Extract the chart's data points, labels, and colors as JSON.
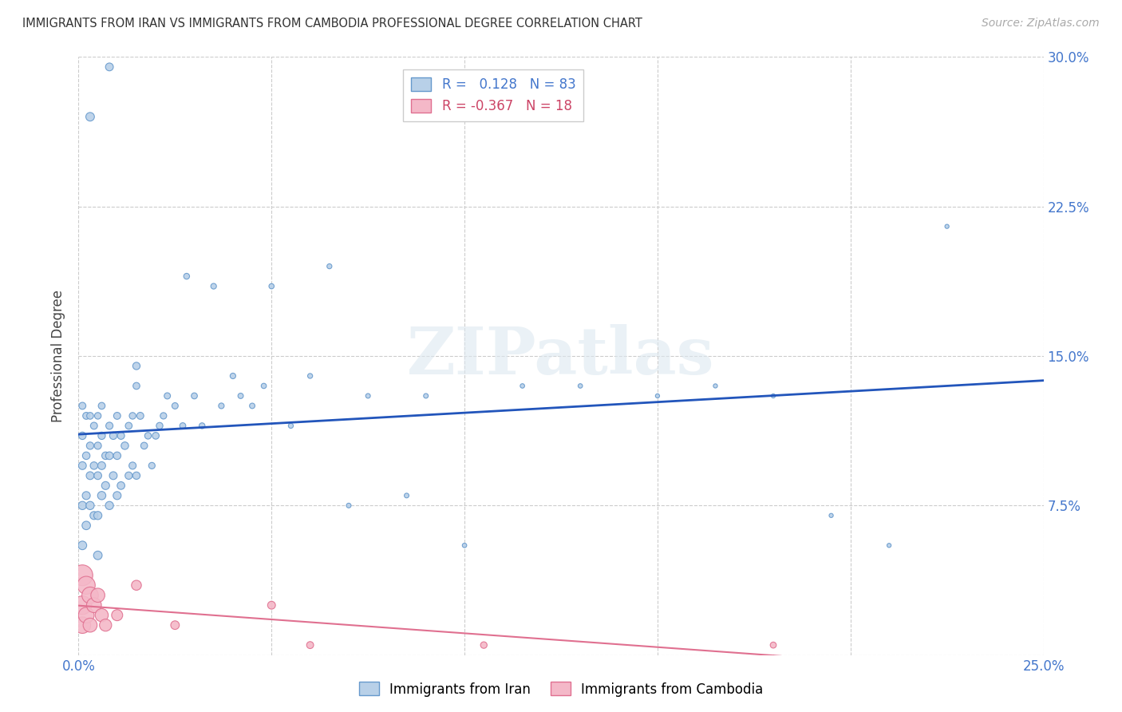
{
  "title": "IMMIGRANTS FROM IRAN VS IMMIGRANTS FROM CAMBODIA PROFESSIONAL DEGREE CORRELATION CHART",
  "source": "Source: ZipAtlas.com",
  "ylabel": "Professional Degree",
  "xlim": [
    0.0,
    0.25
  ],
  "ylim": [
    0.0,
    0.3
  ],
  "iran_color": "#b8d0e8",
  "iran_edge_color": "#6699cc",
  "cambodia_color": "#f4b8c8",
  "cambodia_edge_color": "#e07090",
  "iran_line_color": "#2255bb",
  "cambodia_line_color": "#e07090",
  "watermark_text": "ZIPatlas",
  "iran_N": 83,
  "cambodia_N": 18,
  "iran_R": 0.128,
  "cambodia_R": -0.367,
  "iran_x": [
    0.001,
    0.001,
    0.001,
    0.001,
    0.001,
    0.002,
    0.002,
    0.002,
    0.002,
    0.003,
    0.003,
    0.003,
    0.003,
    0.004,
    0.004,
    0.004,
    0.005,
    0.005,
    0.005,
    0.005,
    0.005,
    0.006,
    0.006,
    0.006,
    0.006,
    0.007,
    0.007,
    0.008,
    0.008,
    0.008,
    0.009,
    0.009,
    0.01,
    0.01,
    0.01,
    0.011,
    0.011,
    0.012,
    0.013,
    0.013,
    0.014,
    0.014,
    0.015,
    0.015,
    0.016,
    0.017,
    0.018,
    0.019,
    0.02,
    0.021,
    0.022,
    0.023,
    0.025,
    0.027,
    0.028,
    0.03,
    0.032,
    0.035,
    0.037,
    0.04,
    0.042,
    0.045,
    0.048,
    0.05,
    0.055,
    0.06,
    0.065,
    0.07,
    0.075,
    0.085,
    0.09,
    0.1,
    0.115,
    0.13,
    0.15,
    0.165,
    0.18,
    0.195,
    0.21,
    0.225,
    0.003,
    0.008,
    0.015
  ],
  "iran_y": [
    0.055,
    0.075,
    0.095,
    0.11,
    0.125,
    0.065,
    0.08,
    0.1,
    0.12,
    0.075,
    0.09,
    0.105,
    0.12,
    0.07,
    0.095,
    0.115,
    0.05,
    0.07,
    0.09,
    0.105,
    0.12,
    0.08,
    0.095,
    0.11,
    0.125,
    0.085,
    0.1,
    0.075,
    0.1,
    0.115,
    0.09,
    0.11,
    0.08,
    0.1,
    0.12,
    0.085,
    0.11,
    0.105,
    0.09,
    0.115,
    0.095,
    0.12,
    0.09,
    0.135,
    0.12,
    0.105,
    0.11,
    0.095,
    0.11,
    0.115,
    0.12,
    0.13,
    0.125,
    0.115,
    0.19,
    0.13,
    0.115,
    0.185,
    0.125,
    0.14,
    0.13,
    0.125,
    0.135,
    0.185,
    0.115,
    0.14,
    0.195,
    0.075,
    0.13,
    0.08,
    0.13,
    0.055,
    0.135,
    0.135,
    0.13,
    0.135,
    0.13,
    0.07,
    0.055,
    0.215,
    0.27,
    0.295,
    0.145
  ],
  "cambodia_x": [
    0.001,
    0.001,
    0.001,
    0.002,
    0.002,
    0.003,
    0.003,
    0.004,
    0.005,
    0.006,
    0.007,
    0.01,
    0.015,
    0.025,
    0.05,
    0.06,
    0.105,
    0.18
  ],
  "cambodia_y": [
    0.04,
    0.025,
    0.015,
    0.035,
    0.02,
    0.03,
    0.015,
    0.025,
    0.03,
    0.02,
    0.015,
    0.02,
    0.035,
    0.015,
    0.025,
    0.005,
    0.005,
    0.005
  ],
  "iran_sizes": [
    60,
    55,
    50,
    45,
    40,
    58,
    52,
    46,
    40,
    55,
    50,
    44,
    38,
    52,
    46,
    40,
    60,
    54,
    48,
    42,
    36,
    56,
    50,
    44,
    38,
    52,
    46,
    54,
    48,
    42,
    50,
    44,
    52,
    46,
    40,
    48,
    42,
    46,
    44,
    38,
    42,
    36,
    44,
    38,
    40,
    38,
    36,
    34,
    38,
    36,
    34,
    32,
    32,
    30,
    28,
    30,
    28,
    26,
    26,
    26,
    24,
    24,
    22,
    22,
    20,
    20,
    20,
    18,
    18,
    18,
    18,
    16,
    16,
    16,
    14,
    14,
    14,
    14,
    14,
    14,
    60,
    50,
    44
  ],
  "cambodia_sizes": [
    350,
    280,
    220,
    260,
    200,
    220,
    160,
    180,
    160,
    140,
    120,
    100,
    80,
    60,
    50,
    40,
    35,
    30
  ]
}
